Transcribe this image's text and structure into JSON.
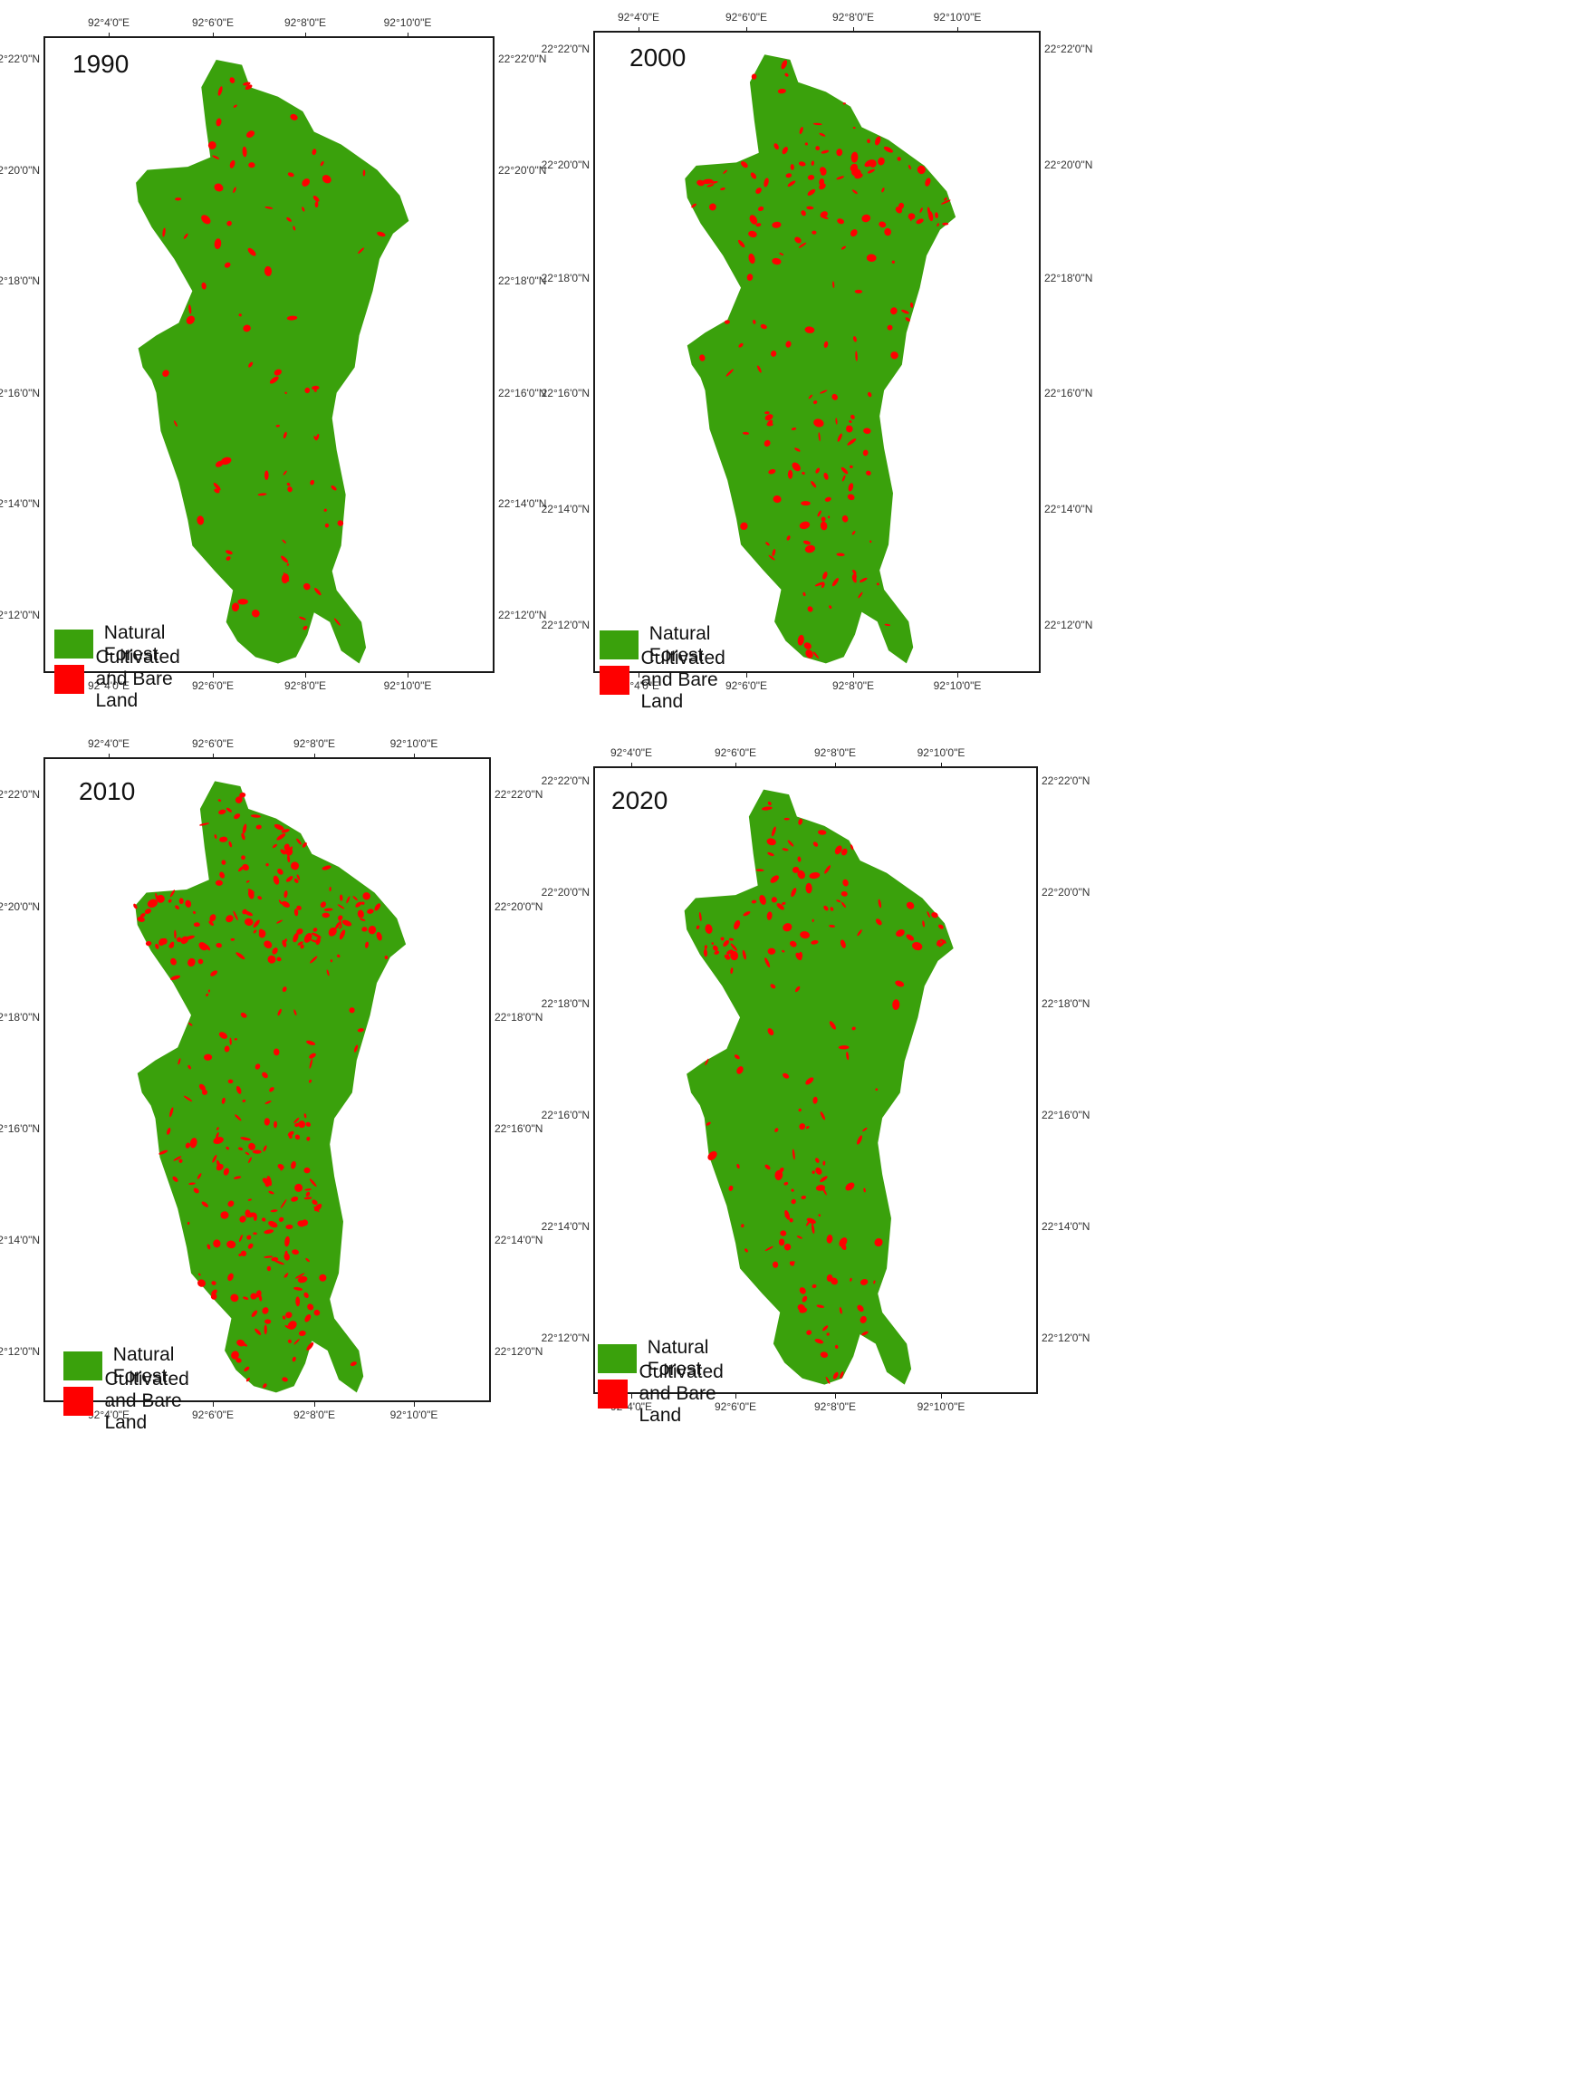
{
  "colors": {
    "forest": "#3aa10c",
    "bare": "#fe0000",
    "frame": "#1a1a1a"
  },
  "legend": {
    "natural_forest": "Natural Forest",
    "cultivated_bare": "Cultivated and Bare Land"
  },
  "longitude_ticks": [
    "92°4'0\"E",
    "92°6'0\"E",
    "92°8'0\"E",
    "92°10'0\"E"
  ],
  "latitude_ticks": [
    "22°22'0\"N",
    "22°20'0\"N",
    "22°18'0\"N",
    "22°16'0\"N",
    "22°14'0\"N",
    "22°12'0\"N"
  ],
  "maps": [
    {
      "year": "1990",
      "bare_land_level": "low"
    },
    {
      "year": "2000",
      "bare_land_level": "moderate"
    },
    {
      "year": "2010",
      "bare_land_level": "high"
    },
    {
      "year": "2020",
      "bare_land_level": "moderate"
    }
  ]
}
